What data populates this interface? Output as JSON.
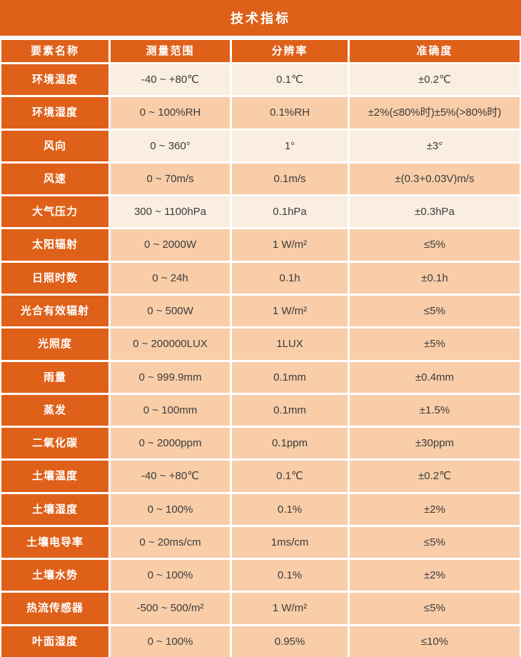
{
  "title": "技术指标",
  "colors": {
    "accent_orange": "#df6019",
    "row_light": "#faeee1",
    "row_dark": "#f8cda8",
    "header_text": "#ffffff",
    "cell_text": "#3c3c3c",
    "background": "#ffffff"
  },
  "table": {
    "headers": [
      "要素名称",
      "测量范围",
      "分辨率",
      "准确度"
    ],
    "rows": [
      {
        "name": "环境温度",
        "range": "-40 ~ +80℃",
        "resolution": "0.1℃",
        "accuracy": "±0.2℃"
      },
      {
        "name": "环境湿度",
        "range": "0 ~ 100%RH",
        "resolution": "0.1%RH",
        "accuracy": "±2%(≤80%时)±5%(>80%时)"
      },
      {
        "name": "风向",
        "range": "0 ~ 360°",
        "resolution": "1°",
        "accuracy": "±3°"
      },
      {
        "name": "风速",
        "range": "0 ~ 70m/s",
        "resolution": "0.1m/s",
        "accuracy": "±(0.3+0.03V)m/s"
      },
      {
        "name": "大气压力",
        "range": "300 ~ 1100hPa",
        "resolution": "0.1hPa",
        "accuracy": "±0.3hPa"
      },
      {
        "name": "太阳辐射",
        "range": "0 ~ 2000W",
        "resolution": "1 W/m²",
        "accuracy": "≤5%"
      },
      {
        "name": "日照时数",
        "range": "0 ~ 24h",
        "resolution": "0.1h",
        "accuracy": "±0.1h"
      },
      {
        "name": "光合有效辐射",
        "range": "0 ~ 500W",
        "resolution": "1 W/m²",
        "accuracy": "≤5%"
      },
      {
        "name": "光照度",
        "range": "0 ~ 200000LUX",
        "resolution": "1LUX",
        "accuracy": "±5%"
      },
      {
        "name": "雨量",
        "range": "0 ~ 999.9mm",
        "resolution": "0.1mm",
        "accuracy": "±0.4mm"
      },
      {
        "name": "蒸发",
        "range": "0 ~ 100mm",
        "resolution": "0.1mm",
        "accuracy": "±1.5%"
      },
      {
        "name": "二氧化碳",
        "range": "0 ~ 2000ppm",
        "resolution": "0.1ppm",
        "accuracy": "±30ppm"
      },
      {
        "name": "土壤温度",
        "range": "-40 ~ +80℃",
        "resolution": "0.1℃",
        "accuracy": "±0.2℃"
      },
      {
        "name": "土壤湿度",
        "range": "0 ~ 100%",
        "resolution": "0.1%",
        "accuracy": "±2%"
      },
      {
        "name": "土壤电导率",
        "range": "0 ~ 20ms/cm",
        "resolution": "1ms/cm",
        "accuracy": "≤5%"
      },
      {
        "name": "土壤水势",
        "range": "0 ~ 100%",
        "resolution": "0.1%",
        "accuracy": "±2%"
      },
      {
        "name": "热流传感器",
        "range": "-500 ~ 500/m²",
        "resolution": "1 W/m²",
        "accuracy": "≤5%"
      },
      {
        "name": "叶面湿度",
        "range": "0 ~ 100%",
        "resolution": "0.95%",
        "accuracy": "≤10%"
      }
    ]
  }
}
